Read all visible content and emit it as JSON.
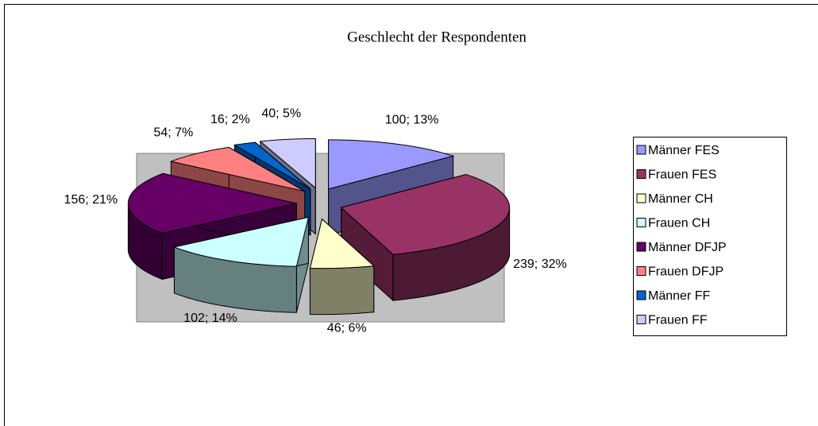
{
  "chart_data": {
    "type": "pie3d",
    "title": "Geschlecht  der Respondenten",
    "categories": [
      "Männer FES",
      "Frauen FES",
      "Männer CH",
      "Frauen CH",
      "Männer DFJP",
      "Frauen DFJP",
      "Männer FF",
      "Frauen FF"
    ],
    "values": [
      100,
      239,
      46,
      102,
      156,
      54,
      16,
      40
    ],
    "value_labels": [
      "100; 13%",
      "239; 32%",
      "46; 6%",
      "102; 14%",
      "156; 21%",
      "54; 7%",
      "16; 2%",
      "40; 5%"
    ],
    "colors": [
      "#9999ff",
      "#993366",
      "#ffffcc",
      "#ccffff",
      "#660066",
      "#ff8080",
      "#0066cc",
      "#ccccff"
    ],
    "legend": "right"
  }
}
